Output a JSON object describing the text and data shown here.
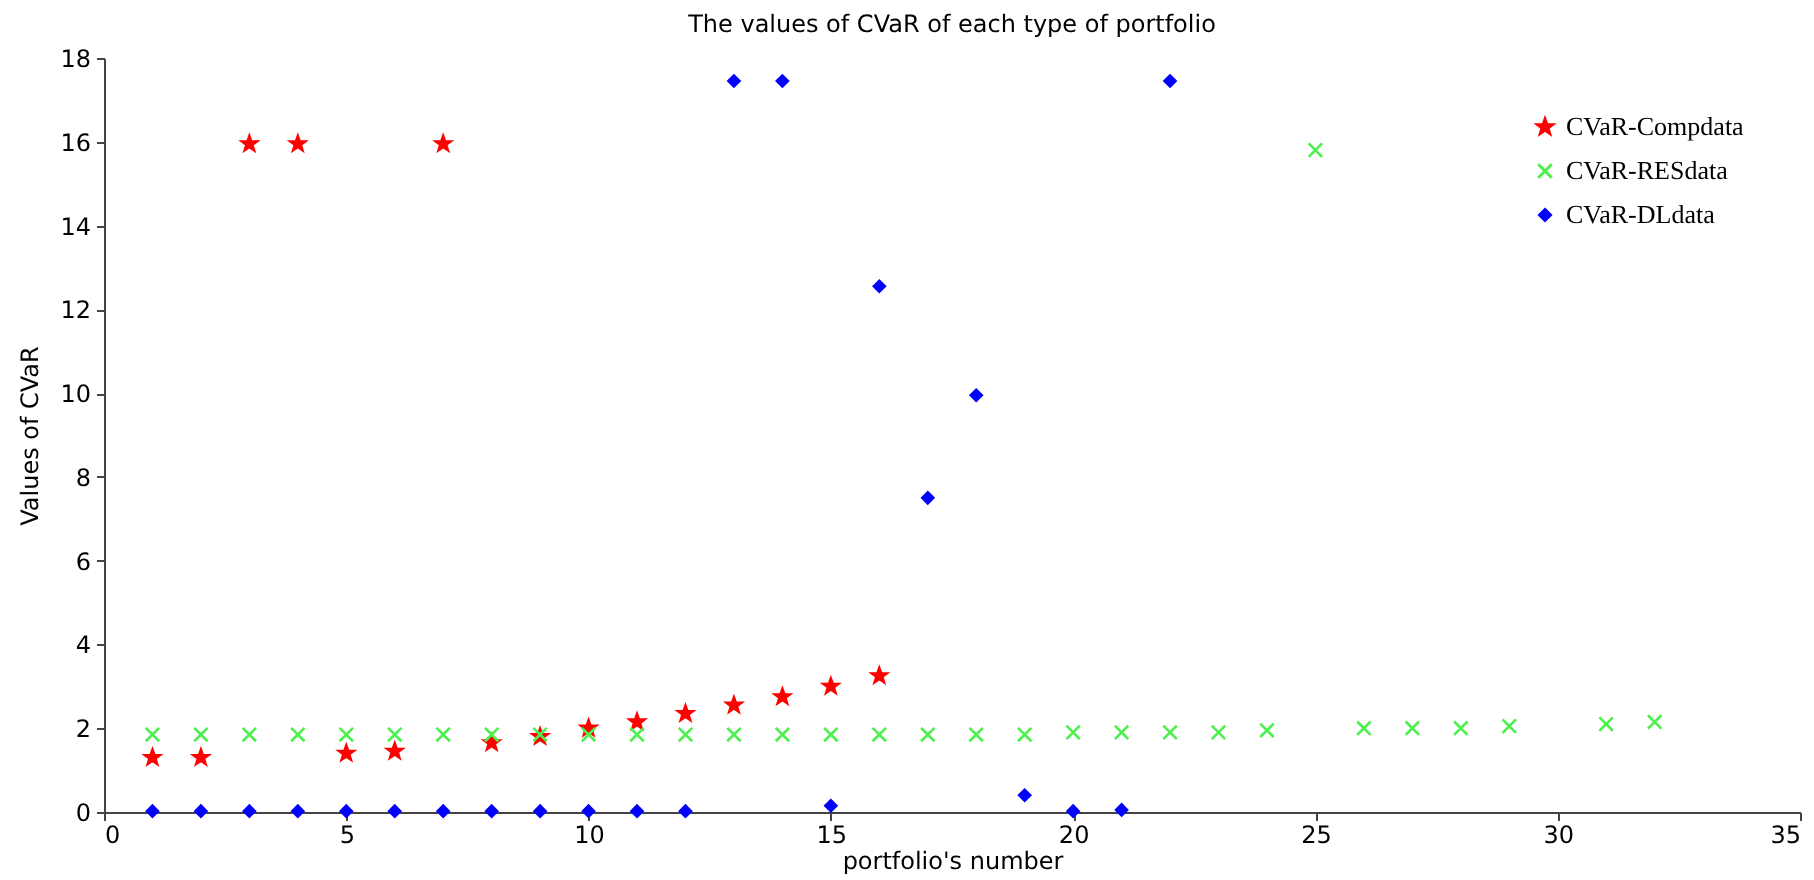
{
  "chart_data": {
    "type": "scatter",
    "title": "The values of CVaR of each type of portfolio",
    "xlabel": "portfolio's number",
    "ylabel": "Values of CVaR",
    "xlim": [
      0,
      35
    ],
    "xticks": [
      0,
      5,
      10,
      15,
      20,
      25,
      30,
      35
    ],
    "ylim": [
      0,
      18
    ],
    "yticks": [
      0,
      2,
      4,
      6,
      8,
      10,
      12,
      14,
      16,
      18
    ],
    "grid": false,
    "legend": "top right",
    "series": [
      {
        "name": "CVaR-Compdata",
        "color": "#ff0000",
        "marker": "star",
        "x": [
          1,
          2,
          3,
          4,
          5,
          6,
          7,
          8,
          9,
          10,
          11,
          12,
          13,
          14,
          15,
          16
        ],
        "values": [
          1.3,
          1.3,
          15.95,
          15.95,
          1.4,
          1.45,
          15.95,
          1.65,
          1.8,
          2.0,
          2.15,
          2.35,
          2.55,
          2.75,
          3.0,
          3.25
        ]
      },
      {
        "name": "CVaR-RESdata",
        "color": "#4cf04c",
        "marker": "cross",
        "x": [
          1,
          2,
          3,
          4,
          5,
          6,
          7,
          8,
          9,
          10,
          11,
          12,
          13,
          14,
          15,
          16,
          17,
          18,
          19,
          20,
          21,
          22,
          23,
          24,
          25,
          26,
          27,
          28,
          29,
          31,
          32
        ],
        "values": [
          1.85,
          1.85,
          1.85,
          1.85,
          1.85,
          1.85,
          1.85,
          1.85,
          1.85,
          1.85,
          1.85,
          1.85,
          1.85,
          1.85,
          1.85,
          1.85,
          1.85,
          1.85,
          1.85,
          1.9,
          1.9,
          1.9,
          1.9,
          1.95,
          15.8,
          2.0,
          2.0,
          2.0,
          2.05,
          2.1,
          2.15
        ]
      },
      {
        "name": "CVaR-DLdata",
        "color": "#0000ff",
        "marker": "diamond",
        "x": [
          1,
          2,
          3,
          4,
          5,
          6,
          7,
          8,
          9,
          10,
          11,
          12,
          13,
          14,
          15,
          16,
          17,
          18,
          19,
          20,
          21,
          22
        ],
        "values": [
          0.02,
          0.02,
          0.02,
          0.02,
          0.02,
          0.02,
          0.02,
          0.02,
          0.02,
          0.02,
          0.02,
          0.02,
          17.45,
          17.45,
          0.15,
          12.55,
          7.5,
          9.95,
          0.4,
          0.02,
          0.05,
          17.45
        ]
      }
    ]
  }
}
